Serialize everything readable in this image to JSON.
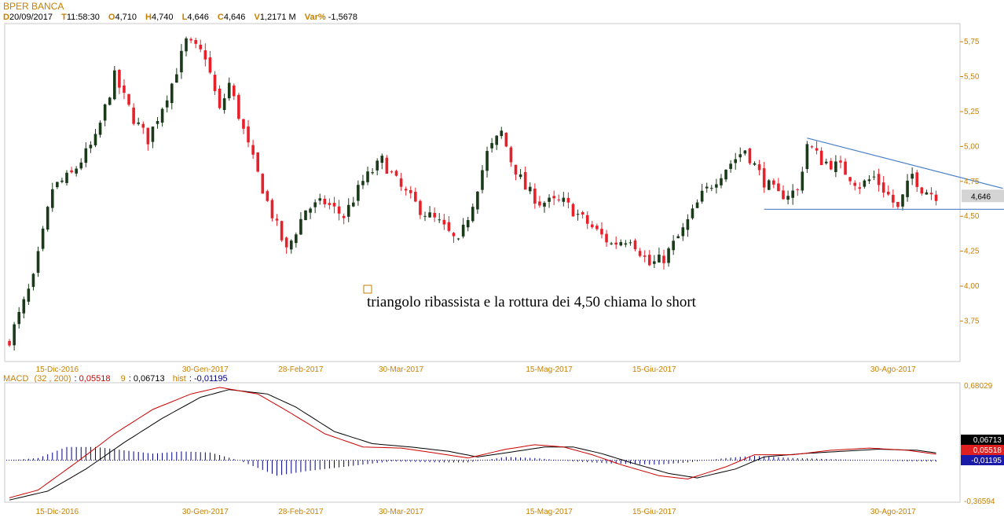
{
  "header": {
    "title": "BPER BANCA",
    "quote": [
      {
        "key": "D",
        "value": "20/09/2017"
      },
      {
        "key": "T",
        "value": "11:58:30"
      },
      {
        "key": "O",
        "value": "4,710"
      },
      {
        "key": "H",
        "value": "4,740"
      },
      {
        "key": "L",
        "value": "4,646"
      },
      {
        "key": "C",
        "value": "4,646"
      },
      {
        "key": "V",
        "value": "1,2171 M"
      },
      {
        "key": "Var%",
        "value": "-1,5678"
      }
    ]
  },
  "colors": {
    "up": "#1a3a1a",
    "down": "#e8202a",
    "trendline": "#4a80c8",
    "axis_label": "#c88000",
    "macd_line": "#cc0000",
    "signal_line": "#000000",
    "histogram": "#000080"
  },
  "chart_data": [
    {
      "type": "candlestick",
      "annotation": "triangolo ribassista e la rottura dei 4,50 chiama lo short",
      "last_price_label": "4,646",
      "y_ticks": [
        "5,75",
        "5,50",
        "5,25",
        "5,00",
        "4,75",
        "4,50",
        "4,25",
        "4,00",
        "3,75"
      ],
      "y_tick_values": [
        5.75,
        5.5,
        5.25,
        5.0,
        4.75,
        4.5,
        4.25,
        4.0,
        3.75
      ],
      "ylim": [
        3.46,
        5.88
      ],
      "x_ticks": [
        "15-Dic-2016",
        "30-Gen-2017",
        "28-Feb-2017",
        "30-Mar-2017",
        "15-Mag-2017",
        "15-Giu-2017",
        "30-Ago-2017"
      ],
      "x_tick_sessions": [
        10,
        41,
        61,
        82,
        113,
        135,
        185
      ],
      "sessions": 200,
      "close_anchors": [
        [
          0,
          3.62
        ],
        [
          5,
          4.05
        ],
        [
          9,
          4.7
        ],
        [
          13,
          4.8
        ],
        [
          18,
          5.05
        ],
        [
          22,
          5.5
        ],
        [
          26,
          5.2
        ],
        [
          29,
          5.05
        ],
        [
          34,
          5.45
        ],
        [
          37,
          5.75
        ],
        [
          41,
          5.65
        ],
        [
          44,
          5.25
        ],
        [
          46,
          5.45
        ],
        [
          50,
          5.0
        ],
        [
          54,
          4.6
        ],
        [
          58,
          4.25
        ],
        [
          62,
          4.55
        ],
        [
          66,
          4.6
        ],
        [
          70,
          4.5
        ],
        [
          74,
          4.75
        ],
        [
          78,
          4.9
        ],
        [
          82,
          4.7
        ],
        [
          86,
          4.55
        ],
        [
          90,
          4.45
        ],
        [
          94,
          4.3
        ],
        [
          97,
          4.6
        ],
        [
          100,
          4.95
        ],
        [
          103,
          5.1
        ],
        [
          105,
          4.9
        ],
        [
          108,
          4.7
        ],
        [
          111,
          4.6
        ],
        [
          116,
          4.6
        ],
        [
          121,
          4.45
        ],
        [
          126,
          4.3
        ],
        [
          130,
          4.35
        ],
        [
          134,
          4.15
        ],
        [
          137,
          4.2
        ],
        [
          141,
          4.4
        ],
        [
          145,
          4.65
        ],
        [
          150,
          4.85
        ],
        [
          154,
          4.98
        ],
        [
          158,
          4.75
        ],
        [
          161,
          4.65
        ],
        [
          165,
          4.68
        ],
        [
          167,
          5.02
        ],
        [
          170,
          4.9
        ],
        [
          174,
          4.85
        ],
        [
          178,
          4.72
        ],
        [
          181,
          4.78
        ],
        [
          184,
          4.65
        ],
        [
          186,
          4.55
        ],
        [
          189,
          4.8
        ],
        [
          191,
          4.7
        ],
        [
          194,
          4.65
        ]
      ],
      "trendline_upper": [
        [
          167,
          5.06
        ],
        [
          208,
          4.7
        ]
      ],
      "support_line": {
        "value": 4.55,
        "from": 158,
        "to": 209
      }
    },
    {
      "type": "line",
      "title": "MACD",
      "params": "(32 , 200)",
      "macd_label": "0,05518",
      "signal_label": "0,06713",
      "signal_period": "9",
      "hist_key": "hist",
      "hist_label": "-0,01195",
      "y_ticks": [
        "0,68029",
        "-0,36594"
      ],
      "ylim": [
        -0.36594,
        0.68029
      ],
      "right_labels": [
        "0,06713",
        "0,05518",
        "-0,01195"
      ],
      "macd_anchors": [
        [
          0,
          -0.34
        ],
        [
          6,
          -0.27
        ],
        [
          14,
          -0.02
        ],
        [
          22,
          0.24
        ],
        [
          30,
          0.46
        ],
        [
          38,
          0.6
        ],
        [
          44,
          0.66
        ],
        [
          52,
          0.6
        ],
        [
          58,
          0.45
        ],
        [
          66,
          0.24
        ],
        [
          74,
          0.12
        ],
        [
          82,
          0.11
        ],
        [
          90,
          0.06
        ],
        [
          96,
          0.02
        ],
        [
          104,
          0.1
        ],
        [
          110,
          0.14
        ],
        [
          116,
          0.12
        ],
        [
          122,
          0.05
        ],
        [
          128,
          -0.04
        ],
        [
          136,
          -0.14
        ],
        [
          142,
          -0.17
        ],
        [
          150,
          -0.06
        ],
        [
          156,
          0.05
        ],
        [
          164,
          0.05
        ],
        [
          172,
          0.09
        ],
        [
          180,
          0.11
        ],
        [
          188,
          0.09
        ],
        [
          194,
          0.055
        ]
      ],
      "signal_anchors": [
        [
          0,
          -0.36
        ],
        [
          8,
          -0.28
        ],
        [
          16,
          -0.08
        ],
        [
          24,
          0.16
        ],
        [
          32,
          0.38
        ],
        [
          40,
          0.57
        ],
        [
          46,
          0.64
        ],
        [
          54,
          0.6
        ],
        [
          60,
          0.48
        ],
        [
          68,
          0.26
        ],
        [
          76,
          0.15
        ],
        [
          84,
          0.12
        ],
        [
          92,
          0.08
        ],
        [
          98,
          0.03
        ],
        [
          106,
          0.08
        ],
        [
          112,
          0.12
        ],
        [
          118,
          0.12
        ],
        [
          124,
          0.06
        ],
        [
          130,
          -0.02
        ],
        [
          138,
          -0.12
        ],
        [
          144,
          -0.16
        ],
        [
          152,
          -0.08
        ],
        [
          158,
          0.03
        ],
        [
          166,
          0.06
        ],
        [
          174,
          0.08
        ],
        [
          182,
          0.1
        ],
        [
          190,
          0.09
        ],
        [
          194,
          0.067
        ]
      ],
      "hist_anchors": [
        [
          0,
          0.0
        ],
        [
          6,
          0.02
        ],
        [
          12,
          0.12
        ],
        [
          18,
          0.12
        ],
        [
          24,
          0.09
        ],
        [
          30,
          0.06
        ],
        [
          36,
          0.08
        ],
        [
          42,
          0.07
        ],
        [
          48,
          0.0
        ],
        [
          56,
          -0.14
        ],
        [
          62,
          -0.1
        ],
        [
          70,
          -0.06
        ],
        [
          80,
          -0.01
        ],
        [
          90,
          -0.02
        ],
        [
          96,
          -0.02
        ],
        [
          104,
          0.03
        ],
        [
          110,
          0.02
        ],
        [
          118,
          -0.01
        ],
        [
          126,
          -0.03
        ],
        [
          136,
          -0.04
        ],
        [
          142,
          -0.02
        ],
        [
          150,
          0.02
        ],
        [
          156,
          0.04
        ],
        [
          164,
          0.02
        ],
        [
          172,
          0.01
        ],
        [
          180,
          0.0
        ],
        [
          188,
          -0.01
        ],
        [
          194,
          -0.012
        ]
      ]
    }
  ]
}
